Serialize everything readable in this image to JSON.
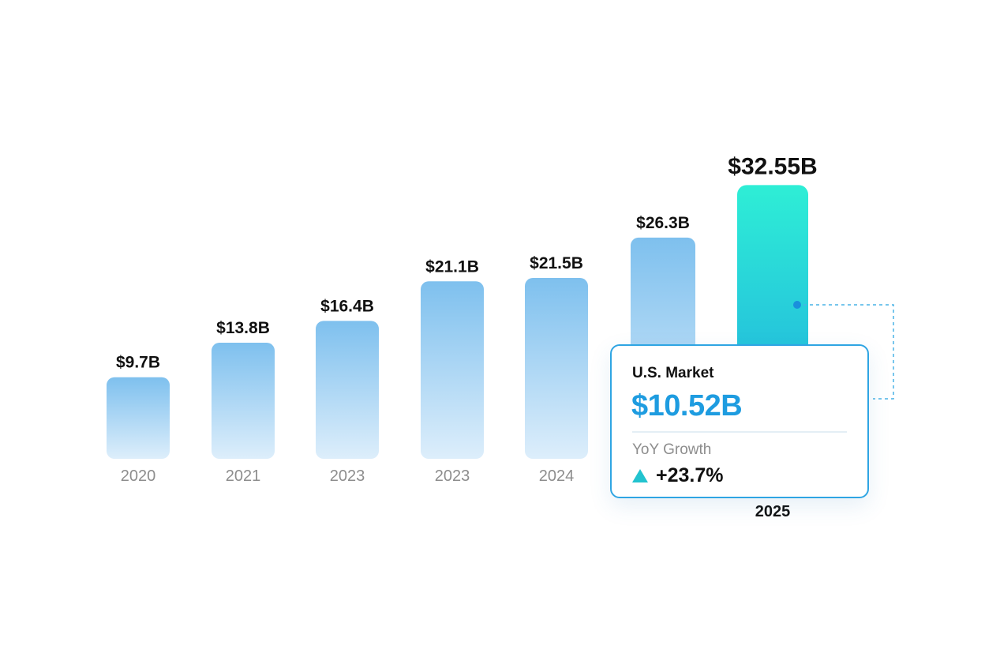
{
  "chart_data": {
    "type": "bar",
    "categories": [
      "2020",
      "2021",
      "2023",
      "2023",
      "2024",
      "",
      "2025"
    ],
    "values": [
      9.7,
      13.8,
      16.4,
      21.1,
      21.5,
      26.3,
      32.55
    ],
    "value_labels": [
      "$9.7B",
      "$13.8B",
      "$16.4B",
      "$21.1B",
      "$21.5B",
      "$26.3B",
      "$32.55B"
    ],
    "ylim": [
      0,
      35
    ],
    "highlight_index": 6,
    "grid": false,
    "legend": "none",
    "colors": {
      "bar_top": "#7ec0ee",
      "bar_bottom": "#ddeefb",
      "highlight_top": "#2eeed6",
      "highlight_bottom": "#1fa7df",
      "connector": "#4ab3e6"
    }
  },
  "tooltip": {
    "title": "U.S. Market",
    "value": "$10.52B",
    "growth_label": "YoY Growth",
    "growth_value": "+23.7%",
    "growth_icon": "triangle-up-icon",
    "accent_color": "#1e9ce0",
    "border_color": "#2fa5e3"
  }
}
